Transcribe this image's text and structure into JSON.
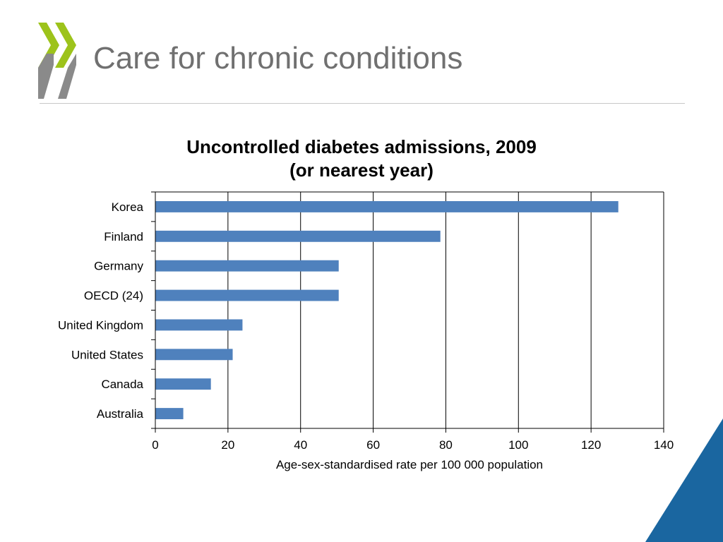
{
  "slide": {
    "title": "Care for chronic conditions",
    "accent_color": "#9dc31b",
    "logo_gray": "#8a8a8a",
    "corner_color": "#1a66a0"
  },
  "chart_data": {
    "type": "bar",
    "orientation": "horizontal",
    "title_line1": "Uncontrolled diabetes admissions, 2009",
    "title_line2": "(or nearest year)",
    "xlabel": "Age-sex-standardised rate per 100 000 population",
    "ylabel": "",
    "categories": [
      "Korea",
      "Finland",
      "Germany",
      "OECD (24)",
      "United Kingdom",
      "United States",
      "Canada",
      "Australia"
    ],
    "values": [
      127.5,
      78.5,
      50.5,
      50.5,
      24,
      21.3,
      15.3,
      7.7
    ],
    "xlim": [
      0,
      140
    ],
    "xticks": [
      0,
      20,
      40,
      60,
      80,
      100,
      120,
      140
    ],
    "gridlines": "vertical",
    "bar_color": "#4f81bd",
    "legend": "none"
  }
}
